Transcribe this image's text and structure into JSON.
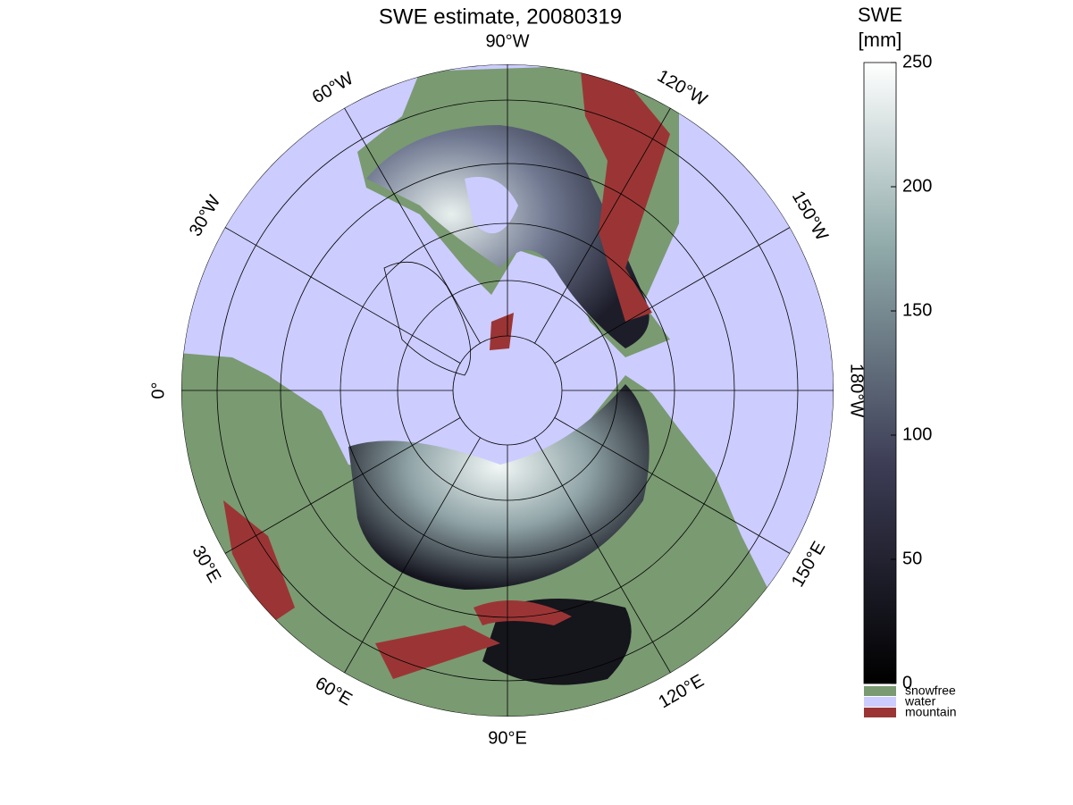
{
  "title": "SWE estimate, 20080319",
  "longitude_labels": [
    "90°W",
    "120°W",
    "150°W",
    "180°W",
    "150°E",
    "120°E",
    "90°E",
    "60°E",
    "30°E",
    "0°",
    "30°W",
    "60°W"
  ],
  "colorbar": {
    "title_line1": "SWE",
    "title_line2": "[mm]",
    "lim": [
      0,
      250
    ],
    "ticks": [
      0,
      50,
      100,
      150,
      200,
      250
    ]
  },
  "legend": [
    {
      "label": "snowfree",
      "color": "#7a9a72"
    },
    {
      "label": "water",
      "color": "#ccccff"
    },
    {
      "label": "mountain",
      "color": "#9b3535"
    }
  ]
}
